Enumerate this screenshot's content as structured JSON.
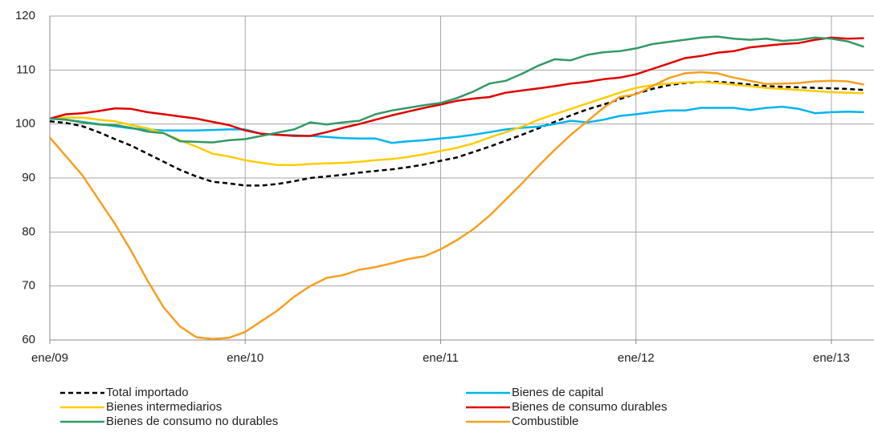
{
  "chart_data": {
    "type": "line",
    "categories": [
      "ene/09",
      null,
      null,
      null,
      null,
      null,
      null,
      null,
      null,
      null,
      null,
      null,
      "ene/10",
      null,
      null,
      null,
      null,
      null,
      null,
      null,
      null,
      null,
      null,
      null,
      "ene/11",
      null,
      null,
      null,
      null,
      null,
      null,
      null,
      null,
      null,
      null,
      null,
      "ene/12",
      null,
      null,
      null,
      null,
      null,
      null,
      null,
      null,
      null,
      null,
      null,
      "ene/13",
      null,
      null
    ],
    "ylim": [
      60,
      120
    ],
    "yticks": [
      60,
      70,
      80,
      90,
      100,
      110,
      120
    ],
    "grid": true,
    "legend": "bottom",
    "series": [
      {
        "name": "Total importado",
        "color": "#000000",
        "dashed": true,
        "values": [
          100.5,
          100.2,
          99.6,
          98.5,
          97.2,
          96,
          94.5,
          93,
          91.5,
          90.3,
          89.3,
          89,
          88.6,
          88.6,
          88.9,
          89.4,
          90,
          90.3,
          90.6,
          91,
          91.3,
          91.6,
          92,
          92.5,
          93.2,
          93.8,
          94.8,
          95.8,
          96.9,
          98,
          99.2,
          100.4,
          101.6,
          102.7,
          103.6,
          104.6,
          105.6,
          106.5,
          107.2,
          107.6,
          107.8,
          107.8,
          107.6,
          107.3,
          107,
          106.9,
          106.8,
          106.7,
          106.6,
          106.5,
          106.3
        ]
      },
      {
        "name": "Bienes de capital",
        "color": "#00b4f0",
        "values": [
          101,
          100.8,
          100.4,
          100,
          99.6,
          99.2,
          99,
          98.8,
          98.8,
          98.8,
          98.9,
          99,
          99,
          98.2,
          98,
          97.9,
          97.8,
          97.6,
          97.4,
          97.3,
          97.3,
          96.5,
          96.8,
          97,
          97.3,
          97.6,
          98,
          98.5,
          99,
          99.3,
          99.5,
          100,
          100.6,
          100.3,
          100.8,
          101.5,
          101.8,
          102.2,
          102.5,
          102.5,
          103,
          103,
          103,
          102.6,
          103,
          103.2,
          102.8,
          102,
          102.2,
          102.3,
          102.2
        ]
      },
      {
        "name": "Bienes intermediarios",
        "color": "#ffcc00",
        "values": [
          101,
          101.2,
          101.2,
          100.8,
          100.5,
          99.8,
          99.2,
          98.3,
          97,
          95.8,
          94.5,
          94,
          93.3,
          92.8,
          92.4,
          92.4,
          92.6,
          92.7,
          92.8,
          93,
          93.3,
          93.5,
          93.9,
          94.4,
          95,
          95.6,
          96.4,
          97.5,
          98.5,
          99.5,
          100.8,
          101.8,
          102.8,
          103.8,
          104.8,
          105.8,
          106.7,
          107.2,
          107.5,
          107.7,
          107.8,
          107.6,
          107.3,
          107,
          106.7,
          106.5,
          106.3,
          106.1,
          105.9,
          105.8,
          105.7
        ]
      },
      {
        "name": "Bienes de consumo durables",
        "color": "#e00000",
        "values": [
          101,
          101.8,
          102,
          102.4,
          102.9,
          102.8,
          102.2,
          101.8,
          101.4,
          101,
          100.4,
          99.8,
          98.8,
          98.2,
          98,
          97.8,
          97.8,
          98.5,
          99.3,
          100,
          100.8,
          101.6,
          102.3,
          103,
          103.6,
          104.3,
          104.7,
          105,
          105.8,
          106.2,
          106.6,
          107,
          107.5,
          107.8,
          108.3,
          108.6,
          109.2,
          110.2,
          111.2,
          112.2,
          112.6,
          113.2,
          113.5,
          114.2,
          114.5,
          114.8,
          115,
          115.6,
          116,
          115.8,
          115.9
        ]
      },
      {
        "name": "Bienes de consumo no durables",
        "color": "#339966",
        "values": [
          101,
          100.8,
          100.3,
          99.9,
          99.8,
          99.3,
          98.6,
          98.3,
          96.8,
          96.7,
          96.6,
          97,
          97.2,
          97.8,
          98.4,
          99,
          100.3,
          99.9,
          100.3,
          100.6,
          101.8,
          102.5,
          103,
          103.5,
          103.9,
          104.8,
          106,
          107.5,
          108,
          109.3,
          110.8,
          112,
          111.8,
          112.8,
          113.3,
          113.5,
          114,
          114.8,
          115.2,
          115.6,
          116,
          116.2,
          115.8,
          115.6,
          115.8,
          115.4,
          115.6,
          116,
          115.8,
          115.3,
          114.3
        ]
      },
      {
        "name": "Combustible",
        "color": "#f5a020",
        "values": [
          97.5,
          94,
          90.5,
          86,
          81.5,
          76.5,
          71,
          66,
          62.5,
          60.5,
          60.2,
          60.4,
          61.5,
          63.5,
          65.5,
          68,
          70,
          71.5,
          72,
          73,
          73.5,
          74.2,
          75,
          75.5,
          76.8,
          78.5,
          80.5,
          83,
          86,
          89,
          92.2,
          95.2,
          98,
          100.5,
          103,
          105,
          105.5,
          107,
          108.5,
          109.4,
          109.6,
          109.4,
          108.6,
          108,
          107.4,
          107.5,
          107.6,
          107.9,
          108,
          107.9,
          107.3
        ]
      }
    ]
  }
}
